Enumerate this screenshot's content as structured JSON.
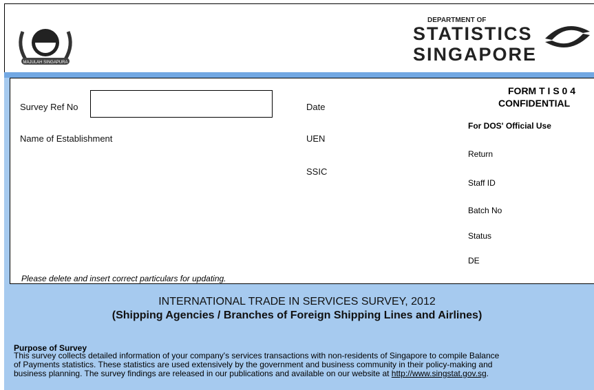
{
  "header": {
    "crest_motto": "MAJULAH SINGAPURA",
    "dept_of": "DEPARTMENT OF",
    "statistics": "STATISTICS",
    "singapore": "SINGAPORE"
  },
  "form": {
    "survey_ref_label": "Survey Ref No",
    "date_label": "Date",
    "name_label": "Name of Establishment",
    "uen_label": "UEN",
    "ssic_label": "SSIC",
    "note": "Please delete and insert correct particulars for updating."
  },
  "official": {
    "form_code": "FORM T I S 0 4",
    "confidential": "CONFIDENTIAL",
    "heading": "For DOS' Official Use",
    "fields": [
      "Return",
      "Staff ID",
      "Batch No",
      "Status",
      "DE"
    ]
  },
  "survey": {
    "title": "INTERNATIONAL TRADE IN SERVICES SURVEY, 2012",
    "subtitle": "(Shipping Agencies / Branches of Foreign Shipping Lines and Airlines)"
  },
  "purpose": {
    "heading": "Purpose of Survey",
    "lines": [
      "This survey collects detailed information of your company's services transactions with non-residents of Singapore to compile Balance",
      "of Payments statistics. These statistics are used extensively by the government and business community in their policy-making and",
      "business planning. The survey findings are released in our publications and available on our website at "
    ],
    "link": "http://www.singstat.gov.sg",
    "end": "."
  }
}
